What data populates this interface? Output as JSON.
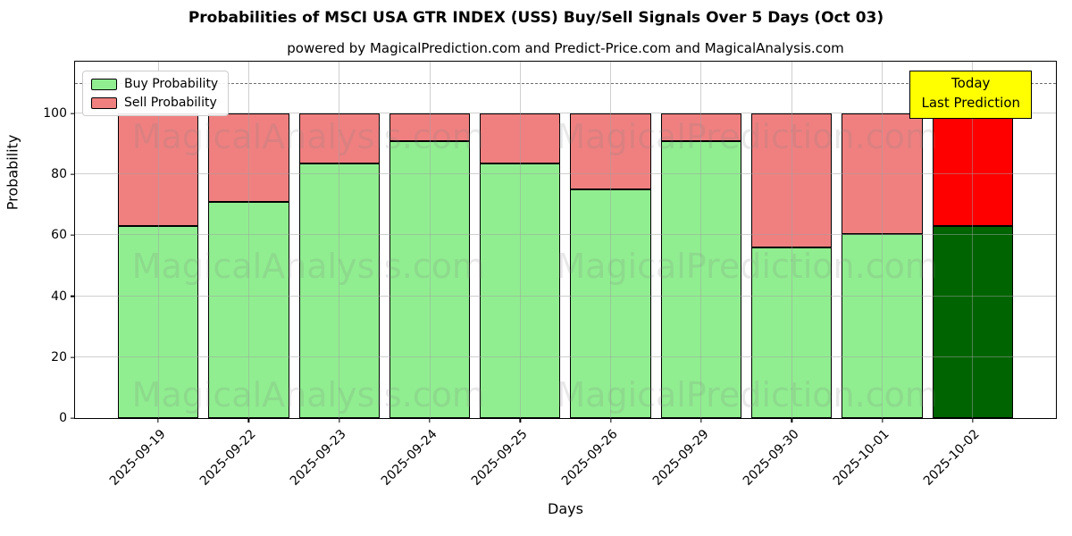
{
  "title": "Probabilities of MSCI USA GTR INDEX (USS) Buy/Sell Signals Over 5 Days (Oct 03)",
  "subtitle": "powered by MagicalPrediction.com and Predict-Price.com and MagicalAnalysis.com",
  "annotation": {
    "line1": "Today",
    "line2": "Last Prediction",
    "bg_color": "#ffff00"
  },
  "watermarks": [
    "MagicalAnalysis.com",
    "MagicalPrediction.com"
  ],
  "chart_data": {
    "type": "bar",
    "stacked": true,
    "title": "Probabilities of MSCI USA GTR INDEX (USS) Buy/Sell Signals Over 5 Days (Oct 03)",
    "xlabel": "Days",
    "ylabel": "Probability",
    "categories": [
      "2025-09-19",
      "2025-09-22",
      "2025-09-23",
      "2025-09-24",
      "2025-09-25",
      "2025-09-26",
      "2025-09-29",
      "2025-09-30",
      "2025-10-01",
      "2025-10-02"
    ],
    "series": [
      {
        "name": "Buy Probability",
        "color": "#90EE90",
        "today_color": "#006400",
        "values": [
          63,
          71,
          83.5,
          91,
          83.5,
          75,
          91,
          56,
          60.5,
          63
        ]
      },
      {
        "name": "Sell Probability",
        "color": "#F08080",
        "today_color": "#FF0000",
        "values": [
          37,
          29,
          16.5,
          9,
          16.5,
          25,
          9,
          44,
          39.5,
          37
        ]
      }
    ],
    "yticks": [
      0,
      20,
      40,
      60,
      80,
      100
    ],
    "ylim": [
      0,
      117
    ],
    "dashed_line_y": 110,
    "grid": true,
    "legend_position": "upper left",
    "today_category": "2025-10-02"
  }
}
